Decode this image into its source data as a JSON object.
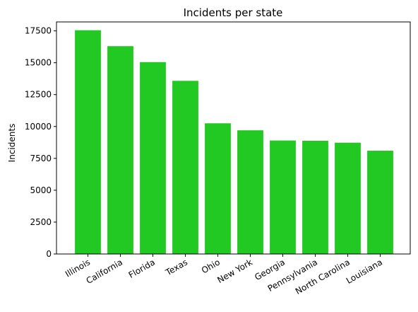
{
  "chart_data": {
    "type": "bar",
    "title": "Incidents per state",
    "xlabel": "",
    "ylabel": "Incidents",
    "categories": [
      "Illinois",
      "California",
      "Florida",
      "Texas",
      "Ohio",
      "New York",
      "Georgia",
      "Pennsylvania",
      "North Carolina",
      "Louisiana"
    ],
    "values": [
      17550,
      16300,
      15050,
      13580,
      10250,
      9700,
      8900,
      8880,
      8730,
      8100
    ],
    "ylim": [
      0,
      18200
    ],
    "yticks": [
      0,
      2500,
      5000,
      7500,
      10000,
      12500,
      15000,
      17500
    ],
    "grid": false,
    "bar_color": "#22c922"
  }
}
